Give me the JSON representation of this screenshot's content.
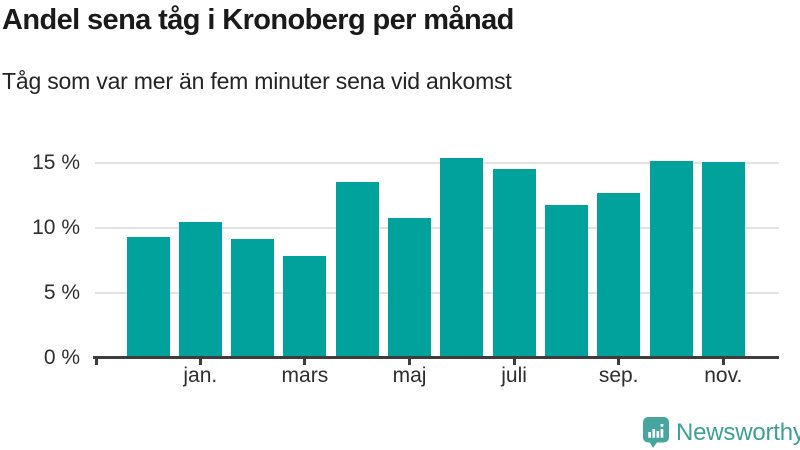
{
  "header": {
    "title": "Andel sena tåg i Kronoberg per månad",
    "subtitle": "Tåg som var mer än fem minuter sena vid ankomst"
  },
  "chart_data": {
    "type": "bar",
    "title": "Andel sena tåg i Kronoberg per månad",
    "subtitle": "Tåg som var mer än fem minuter sena vid ankomst",
    "categories": [
      "",
      "jan.",
      "",
      "mars",
      "",
      "maj",
      "",
      "juli",
      "",
      "sep.",
      "",
      "nov."
    ],
    "values": [
      9.2,
      10.4,
      9.1,
      7.8,
      13.5,
      10.7,
      15.3,
      14.5,
      11.7,
      12.6,
      15.1,
      15.0
    ],
    "y_ticks": [
      "0 %",
      "5 %",
      "10 %",
      "15 %"
    ],
    "unit": "%",
    "xlabel": "",
    "ylabel": "",
    "ylim": [
      0,
      16.5
    ],
    "grid": true,
    "legend": "none",
    "bar_color": "#00a29b"
  },
  "footer": {
    "brand": "Newsworthy"
  },
  "colors": {
    "bar": "#00a29b",
    "brand_icon": "#47a49e",
    "brand_text": "#3f9e99",
    "grid": "#e2e2e2",
    "axis": "#3d3d3d",
    "title_text": "#1a1a1a"
  }
}
